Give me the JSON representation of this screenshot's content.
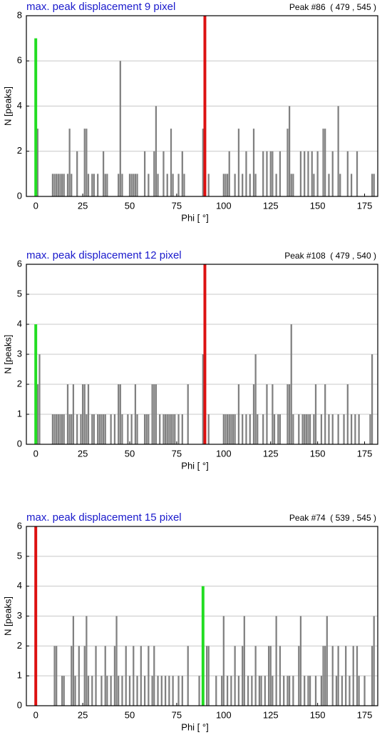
{
  "chart_data": [
    {
      "type": "bar",
      "title": "max. peak displacement 9 pixel",
      "annotation": "Peak #86  ( 479 , 545 )",
      "x_label": "Phi [ °]",
      "y_label": "N [peaks]",
      "xlim": [
        -5,
        182
      ],
      "ylim": [
        0,
        8
      ],
      "xticks": [
        0,
        25,
        50,
        75,
        100,
        125,
        150,
        175
      ],
      "yticks": [
        0,
        2,
        4,
        6,
        8
      ],
      "grid": true,
      "series": [
        {
          "color": "#808080",
          "x": [
            1,
            9,
            10,
            11,
            12,
            13,
            14,
            15,
            17,
            18,
            19,
            22,
            26,
            27,
            28,
            30,
            31,
            33,
            36,
            37,
            38,
            44,
            45,
            46,
            50,
            51,
            52,
            53,
            54,
            58,
            60,
            63,
            64,
            65,
            68,
            70,
            72,
            73,
            76,
            78,
            79,
            89,
            92,
            100,
            101,
            102,
            103,
            106,
            108,
            110,
            112,
            114,
            116,
            117,
            121,
            123,
            125,
            126,
            128,
            130,
            134,
            135,
            136,
            137,
            141,
            143,
            145,
            147,
            148,
            150,
            153,
            154,
            156,
            158,
            161,
            162,
            166,
            168,
            171,
            179,
            180
          ],
          "values": [
            3,
            1,
            1,
            1,
            1,
            1,
            1,
            1,
            1,
            3,
            1,
            2,
            3,
            3,
            1,
            1,
            1,
            1,
            2,
            1,
            1,
            1,
            6,
            1,
            1,
            1,
            1,
            1,
            1,
            2,
            1,
            2,
            4,
            1,
            2,
            1,
            3,
            1,
            1,
            2,
            1,
            3,
            1,
            1,
            1,
            1,
            2,
            1,
            3,
            1,
            2,
            1,
            3,
            1,
            2,
            2,
            2,
            2,
            1,
            2,
            3,
            4,
            1,
            1,
            2,
            2,
            2,
            2,
            1,
            2,
            3,
            3,
            1,
            2,
            4,
            1,
            2,
            1,
            2,
            1,
            1
          ]
        },
        {
          "color": "#22dd22",
          "x": [
            0
          ],
          "values": [
            7
          ]
        },
        {
          "color": "#dd1111",
          "x": [
            90
          ],
          "values": [
            8
          ]
        }
      ]
    },
    {
      "type": "bar",
      "title": "max. peak displacement 12 pixel",
      "annotation": "Peak #108  ( 479 , 540 )",
      "x_label": "Phi [ °]",
      "y_label": "N [peaks]",
      "xlim": [
        -5,
        182
      ],
      "ylim": [
        0,
        6
      ],
      "xticks": [
        0,
        25,
        50,
        75,
        100,
        125,
        150,
        175
      ],
      "yticks": [
        0,
        1,
        2,
        3,
        4,
        5,
        6
      ],
      "grid": true,
      "series": [
        {
          "color": "#808080",
          "x": [
            1,
            2,
            9,
            10,
            11,
            12,
            13,
            14,
            15,
            17,
            18,
            19,
            20,
            22,
            24,
            25,
            26,
            27,
            28,
            30,
            31,
            33,
            34,
            35,
            36,
            37,
            40,
            42,
            44,
            45,
            46,
            49,
            51,
            53,
            54,
            58,
            59,
            60,
            62,
            63,
            64,
            66,
            68,
            69,
            70,
            71,
            72,
            73,
            74,
            76,
            78,
            81,
            89,
            90,
            92,
            100,
            101,
            102,
            103,
            104,
            105,
            106,
            108,
            110,
            112,
            114,
            116,
            117,
            118,
            121,
            123,
            126,
            127,
            129,
            130,
            134,
            135,
            136,
            137,
            140,
            142,
            143,
            144,
            145,
            146,
            148,
            149,
            152,
            154,
            156,
            158,
            161,
            164,
            166,
            168,
            170,
            172,
            178,
            179
          ],
          "values": [
            2,
            3,
            1,
            1,
            1,
            1,
            1,
            1,
            1,
            2,
            1,
            1,
            2,
            1,
            1,
            2,
            2,
            1,
            2,
            1,
            1,
            1,
            1,
            1,
            1,
            1,
            1,
            1,
            2,
            2,
            1,
            1,
            1,
            2,
            1,
            1,
            1,
            1,
            2,
            2,
            2,
            1,
            1,
            1,
            1,
            1,
            1,
            1,
            1,
            1,
            1,
            2,
            3,
            3,
            1,
            1,
            1,
            1,
            1,
            1,
            1,
            1,
            2,
            1,
            1,
            1,
            2,
            3,
            1,
            1,
            2,
            2,
            1,
            1,
            1,
            2,
            2,
            4,
            1,
            1,
            1,
            1,
            1,
            1,
            1,
            1,
            2,
            1,
            2,
            1,
            1,
            1,
            1,
            2,
            1,
            1,
            1,
            1,
            3
          ]
        },
        {
          "color": "#22dd22",
          "x": [
            0
          ],
          "values": [
            4
          ]
        },
        {
          "color": "#dd1111",
          "x": [
            90
          ],
          "values": [
            6
          ]
        }
      ]
    },
    {
      "type": "bar",
      "title": "max. peak displacement 15 pixel",
      "annotation": "Peak #74  ( 539 , 545 )",
      "x_label": "Phi [ °]",
      "y_label": "N [peaks]",
      "xlim": [
        -5,
        182
      ],
      "ylim": [
        0,
        6
      ],
      "xticks": [
        0,
        25,
        50,
        75,
        100,
        125,
        150,
        175
      ],
      "yticks": [
        0,
        1,
        2,
        3,
        4,
        5,
        6
      ],
      "grid": true,
      "series": [
        {
          "color": "#808080",
          "x": [
            10,
            11,
            14,
            15,
            19,
            20,
            21,
            23,
            26,
            27,
            28,
            30,
            32,
            35,
            37,
            38,
            40,
            42,
            43,
            44,
            46,
            48,
            50,
            52,
            54,
            56,
            58,
            60,
            62,
            63,
            65,
            67,
            69,
            71,
            73,
            76,
            78,
            81,
            87,
            91,
            92,
            96,
            99,
            100,
            102,
            104,
            106,
            108,
            110,
            111,
            113,
            115,
            117,
            119,
            120,
            122,
            124,
            125,
            126,
            128,
            130,
            132,
            134,
            135,
            137,
            140,
            141,
            143,
            145,
            146,
            149,
            152,
            153,
            154,
            155,
            158,
            160,
            161,
            163,
            165,
            167,
            169,
            171,
            172,
            175,
            179,
            180
          ],
          "values": [
            2,
            2,
            1,
            1,
            2,
            3,
            1,
            2,
            2,
            3,
            1,
            1,
            2,
            1,
            2,
            1,
            1,
            2,
            3,
            1,
            1,
            2,
            1,
            2,
            1,
            2,
            1,
            2,
            1,
            2,
            1,
            1,
            1,
            1,
            1,
            1,
            1,
            2,
            1,
            2,
            2,
            1,
            1,
            3,
            1,
            1,
            2,
            1,
            2,
            3,
            1,
            1,
            2,
            1,
            1,
            1,
            2,
            2,
            1,
            3,
            2,
            1,
            1,
            1,
            1,
            2,
            3,
            1,
            1,
            1,
            1,
            1,
            2,
            2,
            3,
            2,
            1,
            2,
            1,
            2,
            1,
            2,
            2,
            1,
            1,
            2,
            3
          ]
        },
        {
          "color": "#22dd22",
          "x": [
            89
          ],
          "values": [
            4
          ]
        },
        {
          "color": "#dd1111",
          "x": [
            0
          ],
          "values": [
            6
          ]
        }
      ]
    }
  ]
}
